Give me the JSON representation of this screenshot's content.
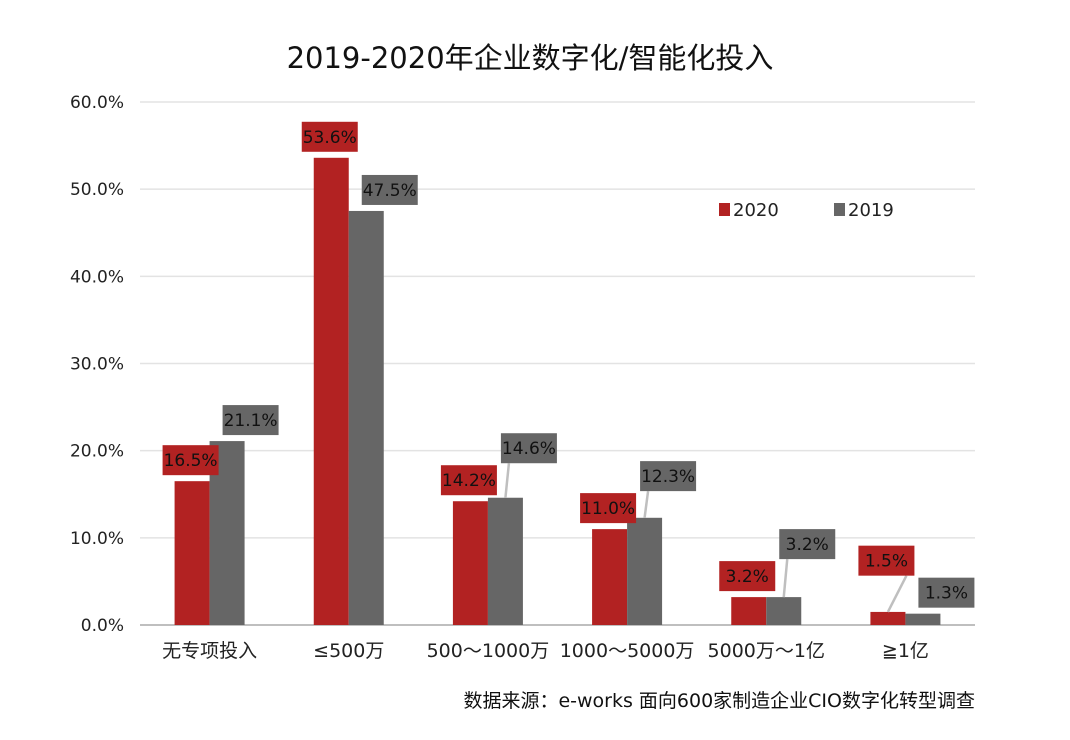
{
  "chart_data": {
    "type": "bar",
    "title": "2019-2020年企业数字化/智能化投入",
    "source": "数据来源：e-works 面向600家制造企业CIO数字化转型调查",
    "categories": [
      "无专项投入",
      "≤500万",
      "500～1000万",
      "1000～5000万",
      "5000万～1亿",
      "≧1亿"
    ],
    "series": [
      {
        "name": "2020",
        "color": "#b22222",
        "values": [
          16.5,
          53.6,
          14.2,
          11.0,
          3.2,
          1.5
        ],
        "labels": [
          "16.5%",
          "53.6%",
          "14.2%",
          "11.0%",
          "3.2%",
          "1.5%"
        ]
      },
      {
        "name": "2019",
        "color": "#666666",
        "values": [
          21.1,
          47.5,
          14.6,
          12.3,
          3.2,
          1.3
        ],
        "labels": [
          "21.1%",
          "47.5%",
          "14.6%",
          "12.3%",
          "3.2%",
          "1.3%"
        ]
      }
    ],
    "yticks": [
      "0.0%",
      "10.0%",
      "20.0%",
      "30.0%",
      "40.0%",
      "50.0%",
      "60.0%"
    ],
    "ylim": [
      0,
      60
    ],
    "grid": true,
    "legend": "top-right"
  }
}
